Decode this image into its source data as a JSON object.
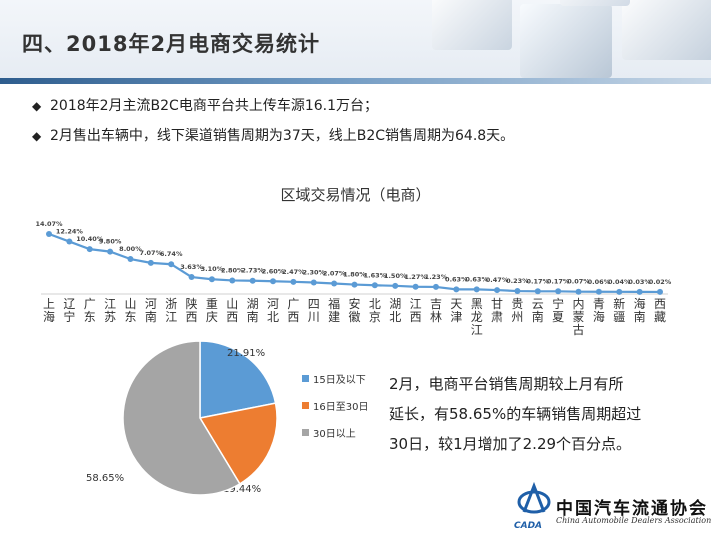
{
  "header": {
    "title": "四、2018年2月电商交易统计"
  },
  "bullets": [
    "2018年2月主流B2C电商平台共上传车源16.1万台；",
    "2月售出车辆中，线下渠道销售周期为37天，线上B2C销售周期为64.8天。"
  ],
  "bullet_marker": "◆",
  "chart_data": [
    {
      "type": "line",
      "title": "区域交易情况（电商）",
      "categories": [
        "上海",
        "辽宁",
        "广东",
        "江苏",
        "山东",
        "河南",
        "浙江",
        "陕西",
        "重庆",
        "山西",
        "湖南",
        "河北",
        "广西",
        "四川",
        "福建",
        "安徽",
        "北京",
        "湖北",
        "江西",
        "吉林",
        "天津",
        "黑龙江",
        "甘肃",
        "贵州",
        "云南",
        "宁夏",
        "内蒙古",
        "青海",
        "新疆",
        "海南",
        "西藏"
      ],
      "values": [
        14.07,
        12.24,
        10.4,
        9.8,
        8.0,
        7.07,
        6.74,
        3.63,
        3.1,
        2.8,
        2.73,
        2.6,
        2.47,
        2.3,
        2.07,
        1.8,
        1.63,
        1.5,
        1.27,
        1.23,
        0.63,
        0.63,
        0.47,
        0.23,
        0.17,
        0.17,
        0.07,
        0.06,
        0.04,
        0.03,
        0.02
      ],
      "value_labels": [
        "14.07%",
        "12.24%",
        "10.40%",
        "9.80%",
        "8.00%",
        "7.07%",
        "6.74%",
        "3.63%",
        "3.10%",
        "2.80%",
        "2.73%",
        "2.60%",
        "2.47%",
        "2.30%",
        "2.07%",
        "1.80%",
        "1.63%",
        "1.50%",
        "1.27%",
        "1.23%",
        "0.63%",
        "0.63%",
        "0.47%",
        "0.23%",
        "0.17%",
        "0.17%",
        "0.07%",
        "0.06%",
        "0.04%",
        "0.03%",
        "0.02%"
      ],
      "color": "#5b9bd5",
      "grid": false
    },
    {
      "type": "pie",
      "slices": [
        {
          "label": "15日及以下",
          "value": 21.91,
          "value_label": "21.91%",
          "color": "#5b9bd5"
        },
        {
          "label": "16日至30日",
          "value": 19.44,
          "value_label": "19.44%",
          "color": "#ed7d31"
        },
        {
          "label": "30日以上",
          "value": 58.65,
          "value_label": "58.65%",
          "color": "#a5a5a5"
        }
      ],
      "legend_position": "right"
    }
  ],
  "side_text": [
    "2月，电商平台销售周期较上月有所",
    "延长，有58.65%的车辆销售周期超过",
    "30日，较1月增加了2.29个百分点。"
  ],
  "logo": {
    "name": "中国汽车流通协会",
    "acronym": "CADA",
    "english": "China Automobile Dealers Association"
  }
}
